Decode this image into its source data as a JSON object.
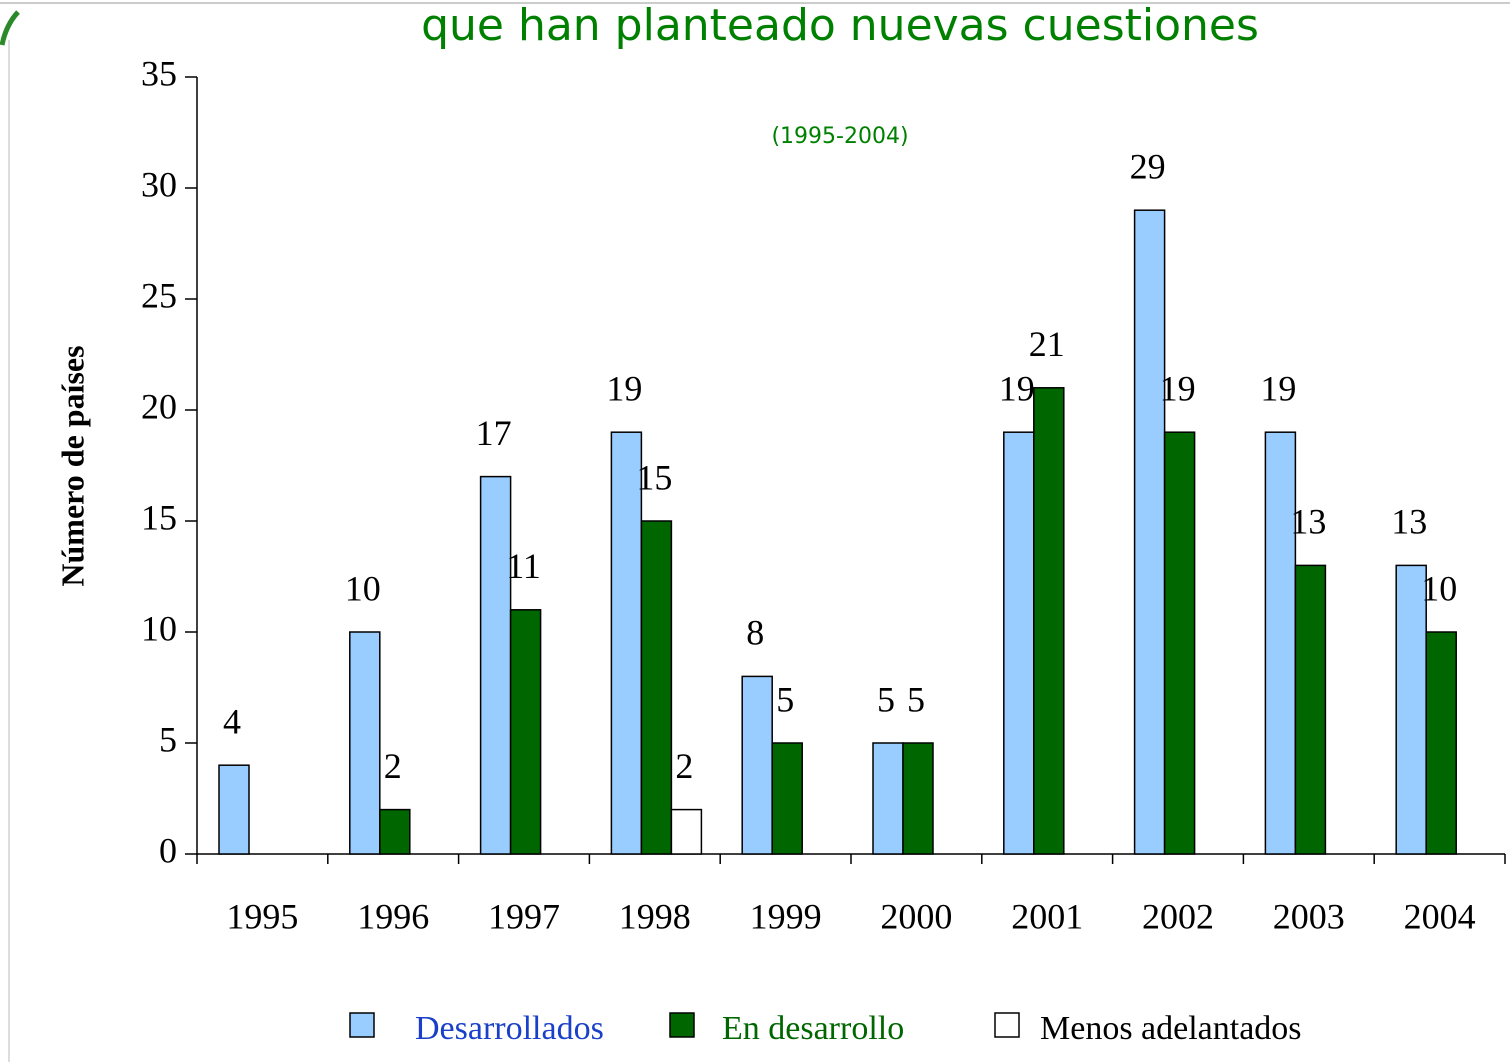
{
  "chart_data": {
    "type": "bar",
    "title": "que han planteado nuevas cuestiones",
    "subtitle": "(1995-2004)",
    "y_label": "Número de países",
    "categories": [
      "1995",
      "1996",
      "1997",
      "1998",
      "1999",
      "2000",
      "2001",
      "2002",
      "2003",
      "2004"
    ],
    "series": [
      {
        "name": "Desarrollados",
        "color": "#99ccff",
        "label_color": "#1a3fc8",
        "values": [
          4,
          10,
          17,
          19,
          8,
          5,
          19,
          29,
          19,
          13
        ]
      },
      {
        "name": "En desarrollo",
        "color": "#006600",
        "label_color": "#006600",
        "values": [
          null,
          2,
          11,
          15,
          5,
          5,
          21,
          19,
          13,
          10
        ]
      },
      {
        "name": "Menos adelantados",
        "color": "#ffffff",
        "label_color": "#000000",
        "values": [
          null,
          null,
          null,
          2,
          null,
          null,
          null,
          null,
          null,
          null
        ]
      }
    ],
    "ylim": [
      0,
      35
    ],
    "yticks": [
      0,
      5,
      10,
      15,
      20,
      25,
      30,
      35
    ],
    "grid": false,
    "legend": "bottom"
  }
}
